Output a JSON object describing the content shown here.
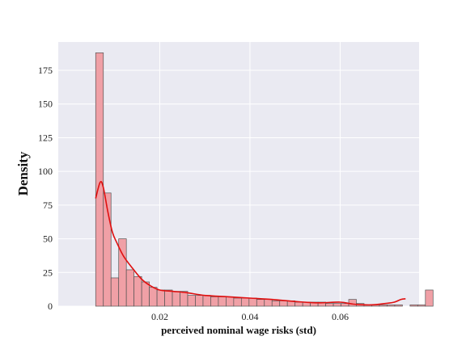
{
  "chart_data": {
    "type": "histogram",
    "title": "",
    "xlabel": "perceived nominal wage risks (std)",
    "ylabel": "Density",
    "xlim": [
      -0.0025,
      0.0775
    ],
    "ylim": [
      0,
      196
    ],
    "xticks": [
      0.02,
      0.04,
      0.06
    ],
    "xtick_labels": [
      "0.02",
      "0.04",
      "0.06"
    ],
    "yticks": [
      0,
      25,
      50,
      75,
      100,
      125,
      150,
      175
    ],
    "ytick_labels": [
      "0",
      "25",
      "50",
      "75",
      "100",
      "125",
      "150",
      "175"
    ],
    "grid": true,
    "legend": false,
    "bins": {
      "start": 0.0058,
      "width": 0.0017,
      "values": [
        188,
        84,
        21,
        50,
        27,
        22,
        18,
        14,
        12,
        12,
        11,
        11,
        8,
        8,
        8,
        7,
        7,
        7,
        6,
        6,
        6,
        5,
        5,
        4,
        4,
        4,
        3,
        3,
        3,
        3,
        2,
        2,
        2,
        5,
        2,
        1,
        1,
        1,
        1,
        1,
        0,
        1,
        1,
        12
      ]
    },
    "kde": {
      "x": [
        0.0058,
        0.0068,
        0.0075,
        0.0085,
        0.0095,
        0.0105,
        0.012,
        0.014,
        0.016,
        0.018,
        0.02,
        0.023,
        0.026,
        0.03,
        0.035,
        0.04,
        0.045,
        0.05,
        0.055,
        0.06,
        0.063,
        0.067,
        0.07,
        0.072,
        0.0735,
        0.0745
      ],
      "y": [
        80,
        92,
        88,
        70,
        55,
        47,
        37,
        28,
        20,
        15,
        12,
        11,
        10,
        8,
        7,
        6,
        5,
        3.5,
        2.5,
        3,
        1.5,
        1,
        2,
        3,
        5,
        5.5
      ]
    },
    "colors": {
      "bar_fill": "#f0a0a6",
      "bar_edge": "#555555",
      "kde_line": "#e01010",
      "plot_bg": "#eaeaf2",
      "grid": "#ffffff"
    }
  }
}
